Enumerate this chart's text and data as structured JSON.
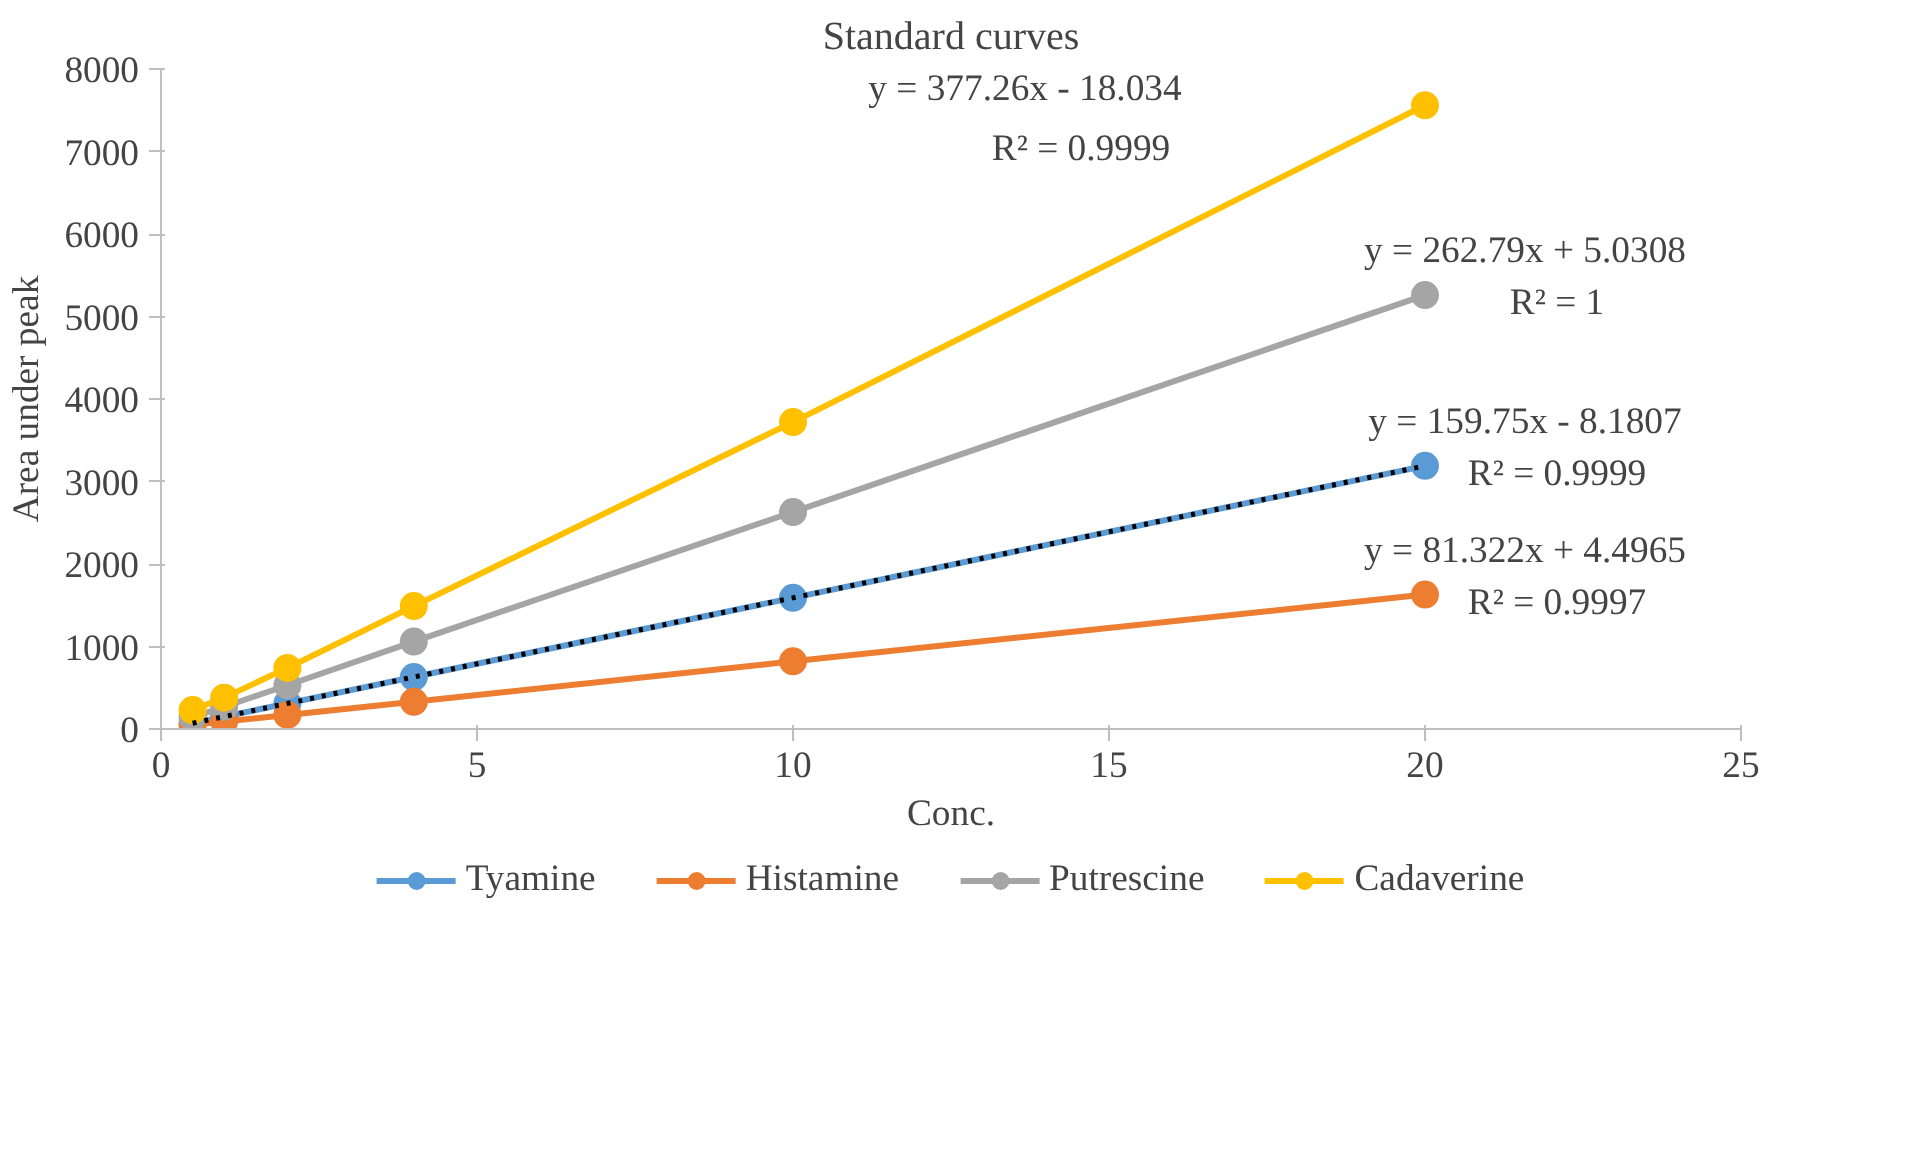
{
  "chart_data": {
    "type": "line",
    "title": "Standard curves",
    "xlabel": "Conc.",
    "ylabel": "Area under peak",
    "x": [
      0.5,
      1,
      2,
      4,
      10,
      20
    ],
    "series": [
      {
        "name": "Tyamine",
        "color": "#5b9bd5",
        "values": [
          70,
          150,
          310,
          630,
          1590,
          3190
        ]
      },
      {
        "name": "Histamine",
        "color": "#ed7d31",
        "values": [
          50,
          90,
          170,
          330,
          820,
          1630
        ]
      },
      {
        "name": "Putrescine",
        "color": "#a5a5a5",
        "values": [
          140,
          270,
          530,
          1060,
          2630,
          5260
        ]
      },
      {
        "name": "Cadaverine",
        "color": "#ffc000",
        "values": [
          230,
          380,
          740,
          1490,
          3720,
          7560
        ]
      },
      {
        "type": "line",
        "color": "#000000",
        "x": [
          0.5,
          20
        ],
        "values": [
          70,
          3190
        ],
        "marker": "none",
        "line_style": "dotted"
      }
    ],
    "marker": "circle",
    "line_style": "solid",
    "grid": false,
    "legend": "bottom",
    "xlim": [
      0,
      25
    ],
    "ylim": [
      0,
      8000
    ],
    "xticks": [
      0,
      5,
      10,
      15,
      20,
      25
    ],
    "yticks": [
      0,
      1000,
      2000,
      3000,
      4000,
      5000,
      6000,
      7000,
      8000
    ],
    "annotations": [
      "y = 159.75x - 8.1807",
      "R² = 0.9999",
      "y = 81.322x + 4.4965",
      "R² = 0.9997",
      "y = 262.79x + 5.0308",
      "R² = 1",
      "y = 377.26x - 18.034",
      "R² = 0.9999"
    ]
  }
}
